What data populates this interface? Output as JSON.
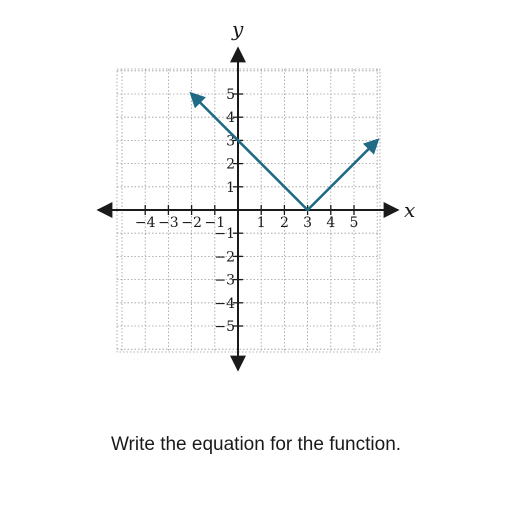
{
  "question": "Write the equation for the function.",
  "chart_data": {
    "type": "line",
    "title": "",
    "xlabel": "x",
    "ylabel": "y",
    "xlim": [
      -5,
      6
    ],
    "ylim": [
      -6,
      6
    ],
    "grid": true,
    "grid_style": "dotted",
    "x_ticks": [
      -4,
      -3,
      -2,
      -1,
      1,
      2,
      3,
      4,
      5
    ],
    "y_ticks": [
      -5,
      -4,
      -3,
      -2,
      -1,
      1,
      2,
      3,
      4,
      5
    ],
    "series": [
      {
        "x": [
          -2,
          3,
          6
        ],
        "y": [
          5,
          0,
          3
        ],
        "arrows": "both-ends",
        "color": "#1f6b86"
      }
    ],
    "axis_color": "#1a1a1a",
    "grid_color": "#9a9a9a"
  }
}
